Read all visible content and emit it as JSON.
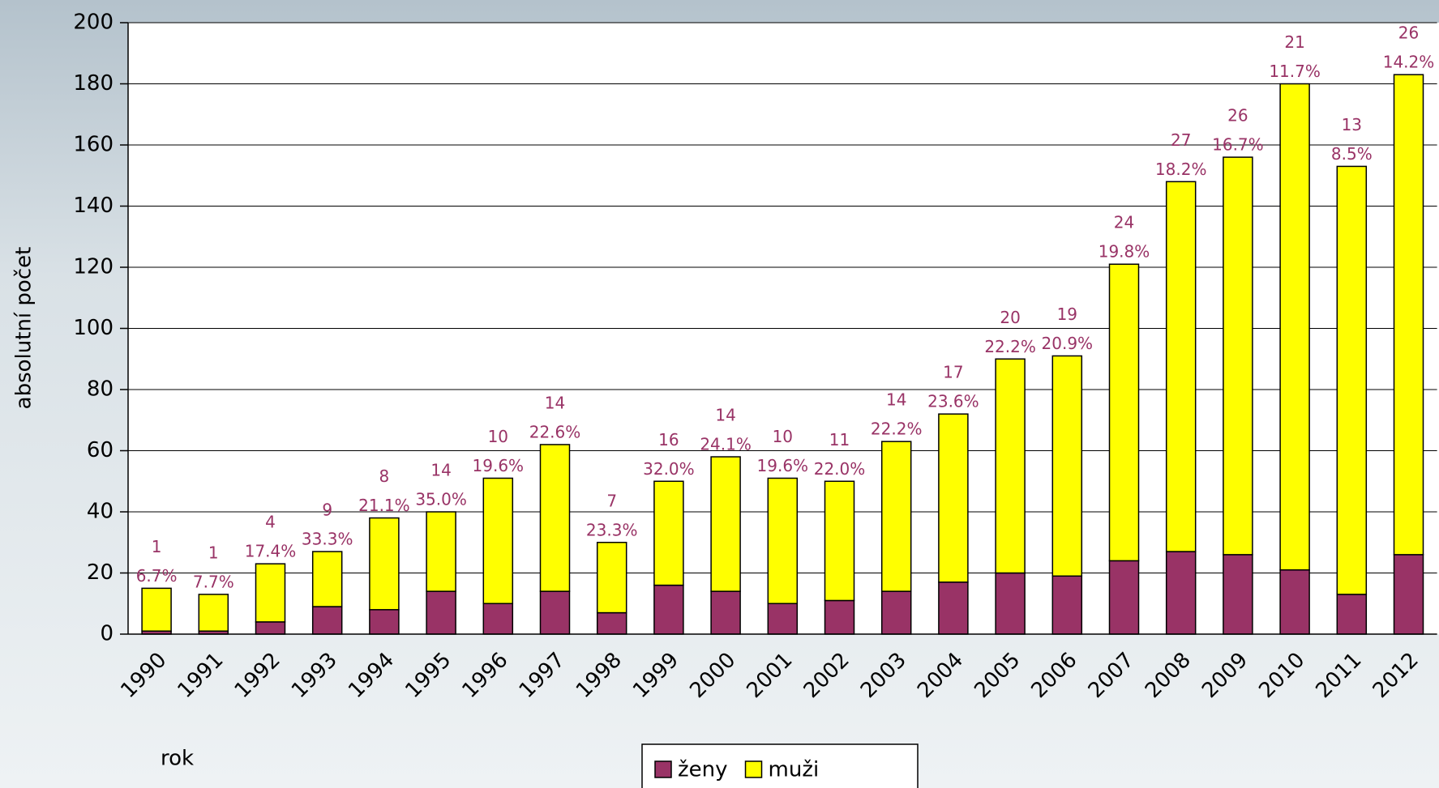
{
  "chart_data": {
    "type": "stacked_bar",
    "x_label": "rok",
    "y_label": "absolutní počet",
    "categories": [
      "1990",
      "1991",
      "1992",
      "1993",
      "1994",
      "1995",
      "1996",
      "1997",
      "1998",
      "1999",
      "2000",
      "2001",
      "2002",
      "2003",
      "2004",
      "2005",
      "2006",
      "2007",
      "2008",
      "2009",
      "2010",
      "2011",
      "2012"
    ],
    "series": [
      {
        "name": "ženy",
        "color": "#993366",
        "values": [
          1,
          1,
          4,
          9,
          8,
          14,
          10,
          14,
          7,
          16,
          14,
          10,
          11,
          14,
          17,
          20,
          19,
          24,
          27,
          26,
          21,
          13,
          26
        ]
      },
      {
        "name": "muži",
        "color": "#ffff00",
        "values": [
          14,
          12,
          19,
          18,
          30,
          26,
          41,
          48,
          23,
          34,
          44,
          41,
          39,
          49,
          55,
          70,
          72,
          97,
          121,
          130,
          159,
          140,
          157
        ]
      }
    ],
    "annotations": [
      "6.7%",
      "7.7%",
      "17.4%",
      "33.3%",
      "21.1%",
      "35.0%",
      "19.6%",
      "22.6%",
      "23.3%",
      "32.0%",
      "24.1%",
      "19.6%",
      "22.0%",
      "22.2%",
      "23.6%",
      "22.2%",
      "20.9%",
      "19.8%",
      "18.2%",
      "16.7%",
      "11.7%",
      "8.5%",
      "14.2%"
    ],
    "ylim": [
      0,
      200
    ],
    "yticks": [
      0,
      20,
      40,
      60,
      80,
      100,
      120,
      140,
      160,
      180,
      200
    ],
    "grid": true,
    "legend": "bottom"
  }
}
